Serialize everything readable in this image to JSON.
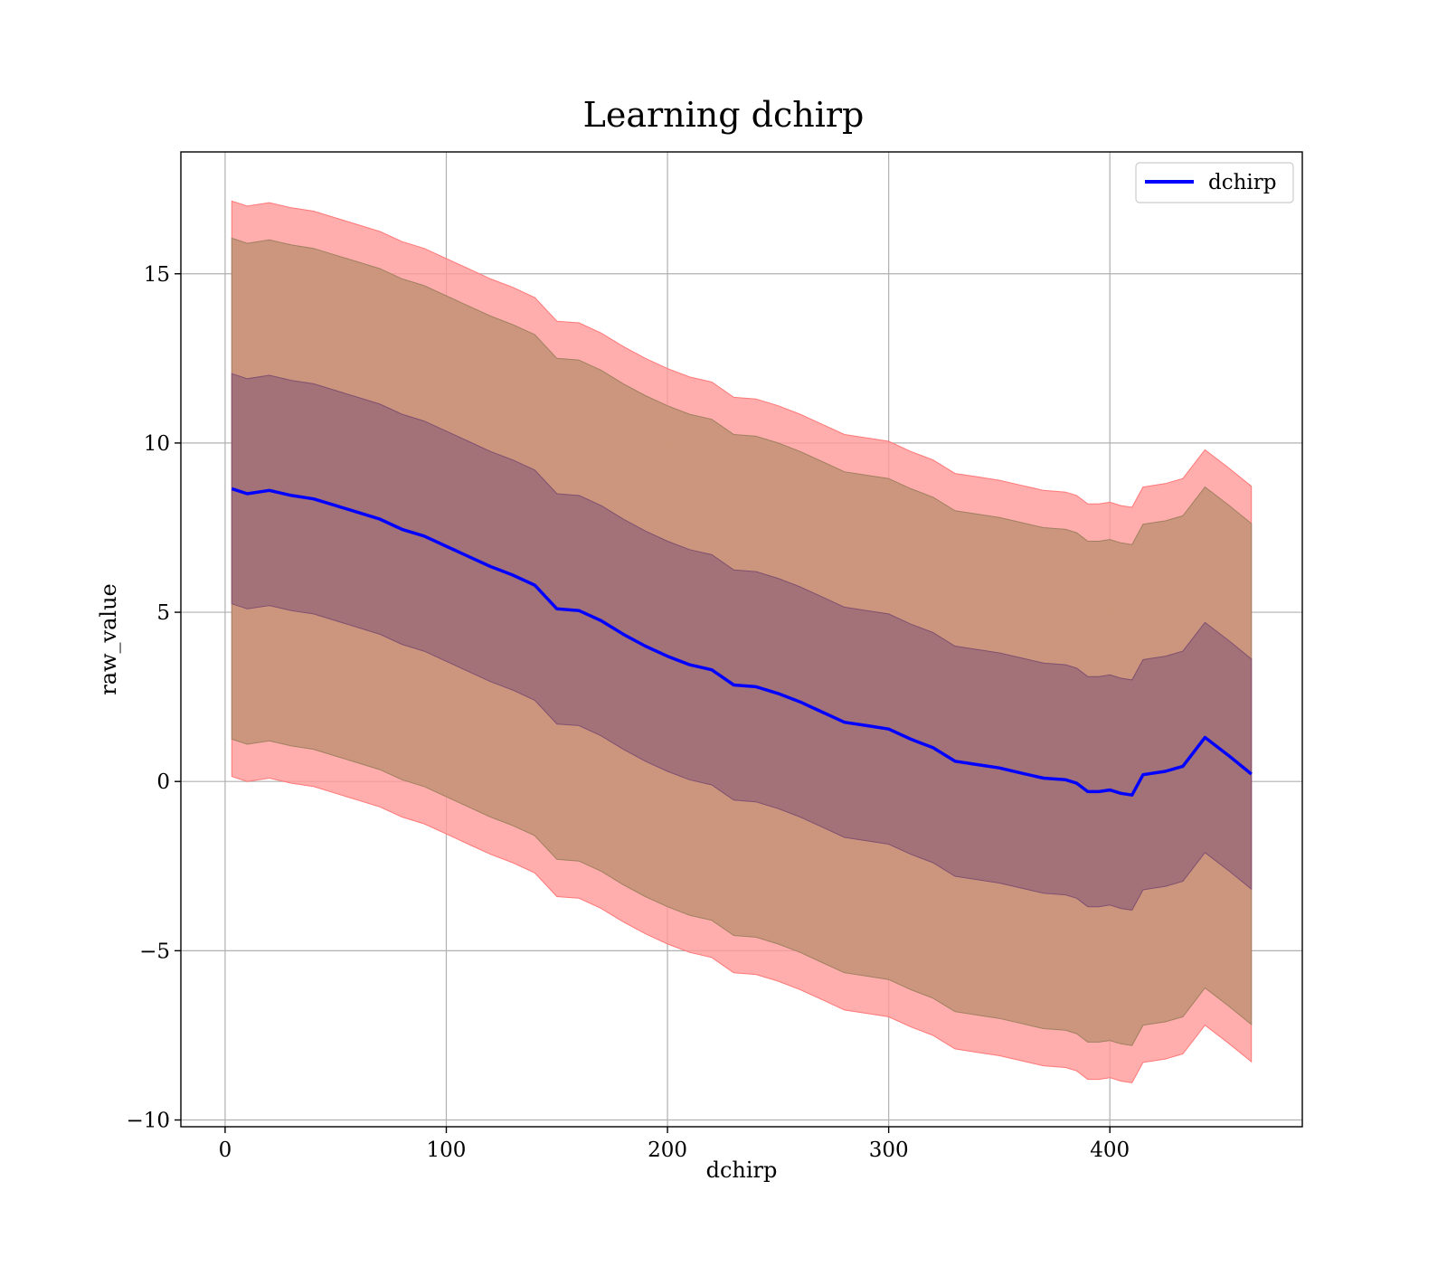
{
  "chart_data": {
    "type": "line",
    "title": "Learning dchirp",
    "xlabel": "dchirp",
    "ylabel": "raw_value",
    "xlim": [
      -20,
      487
    ],
    "ylim": [
      -10.2,
      18.6
    ],
    "xticks": [
      0,
      100,
      200,
      300,
      400
    ],
    "yticks": [
      -10,
      -5,
      0,
      5,
      10,
      15
    ],
    "xtick_labels": [
      "0",
      "100",
      "200",
      "300",
      "400"
    ],
    "ytick_labels": [
      "−10",
      "−5",
      "0",
      "5",
      "10",
      "15"
    ],
    "grid": true,
    "legend": {
      "position": "top-right",
      "entries": [
        "dchirp"
      ]
    },
    "colors": {
      "mean": "#0000ff",
      "outer_band": "#ff9999",
      "middle_band": "#c8957a",
      "inner_band": "#a07078"
    },
    "series": [
      {
        "name": "dchirp",
        "x": [
          3,
          10,
          20,
          30,
          40,
          50,
          60,
          70,
          80,
          90,
          100,
          110,
          120,
          130,
          140,
          150,
          160,
          170,
          180,
          190,
          200,
          210,
          220,
          230,
          240,
          250,
          260,
          270,
          280,
          290,
          300,
          310,
          320,
          330,
          340,
          350,
          360,
          370,
          380,
          385,
          390,
          395,
          400,
          405,
          410,
          415,
          425,
          433,
          443,
          454,
          464
        ],
        "mean": [
          8.65,
          8.5,
          8.6,
          8.45,
          8.35,
          8.15,
          7.95,
          7.75,
          7.45,
          7.25,
          6.95,
          6.65,
          6.35,
          6.1,
          5.8,
          5.1,
          5.05,
          4.75,
          4.35,
          4.0,
          3.7,
          3.45,
          3.3,
          2.85,
          2.8,
          2.6,
          2.35,
          2.05,
          1.75,
          1.65,
          1.55,
          1.25,
          1.0,
          0.6,
          0.5,
          0.4,
          0.25,
          0.1,
          0.05,
          -0.05,
          -0.3,
          -0.3,
          -0.25,
          -0.35,
          -0.4,
          0.2,
          0.3,
          0.45,
          1.3,
          0.75,
          0.22
        ],
        "inner_band_halfwidth": 3.4,
        "middle_band_halfwidth": 7.4,
        "outer_band_halfwidth": 8.5
      }
    ]
  }
}
